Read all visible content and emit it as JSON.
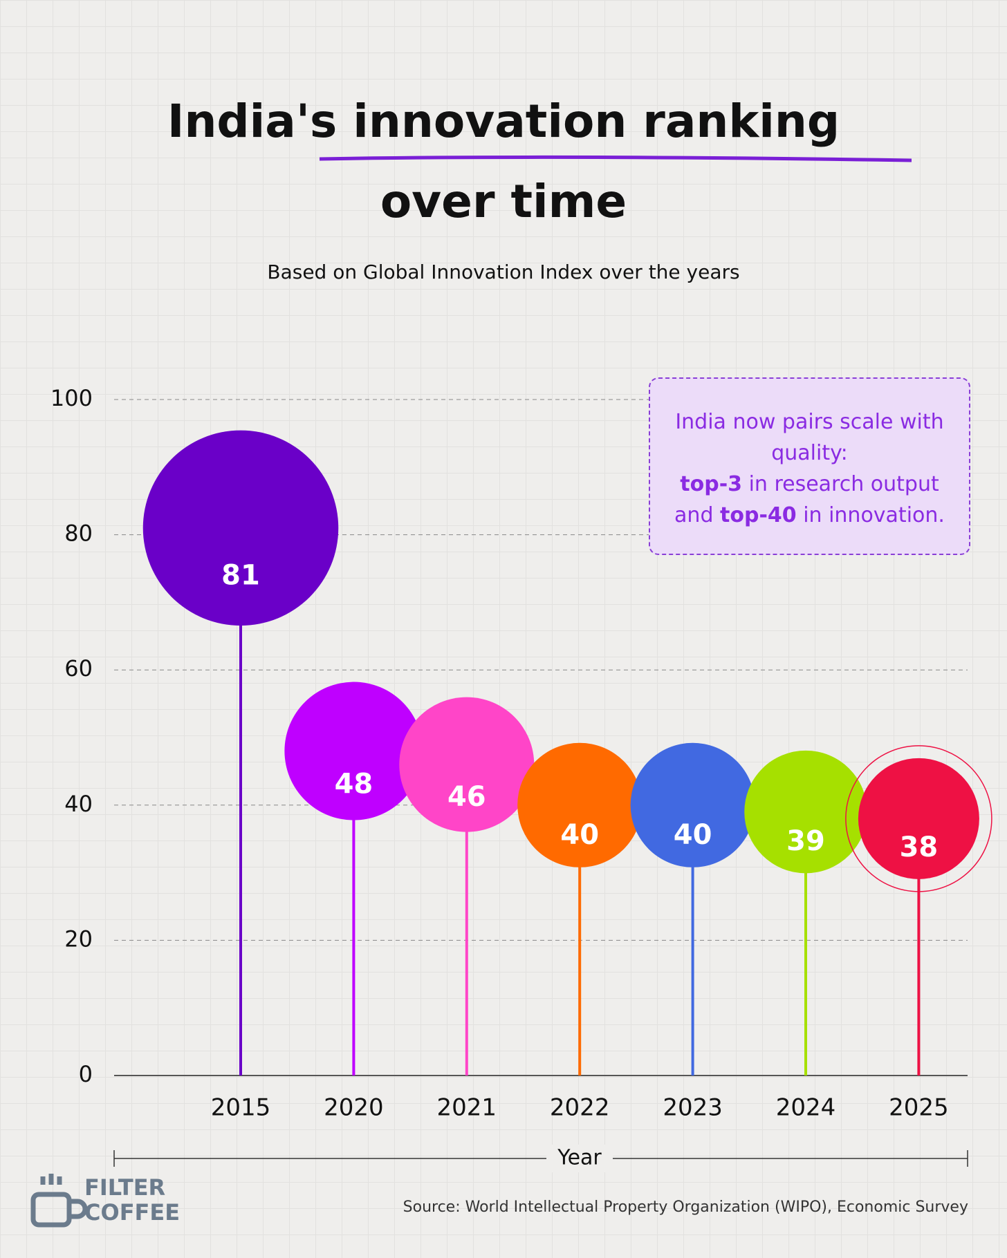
{
  "chart_data": {
    "type": "balloon",
    "title": [
      "India's innovation ranking",
      "over time"
    ],
    "subtitle": "Based on Global Innovation Index over the years",
    "categories": [
      "2015",
      "2020",
      "2021",
      "2022",
      "2023",
      "2024",
      "2025"
    ],
    "values": [
      81,
      48,
      46,
      40,
      40,
      39,
      38
    ],
    "colors": [
      "#6a00c8",
      "#bf00ff",
      "#ff45c8",
      "#ff6a00",
      "#4169e1",
      "#a6e000",
      "#ee1144"
    ],
    "ylim": [
      0,
      100
    ],
    "yticks": [
      0,
      20,
      40,
      60,
      80,
      100
    ],
    "grid": true,
    "xlabel": "Year",
    "highlight": "2025",
    "annotation": [
      {
        "text": "India now pairs scale with quality:",
        "bold": false
      },
      {
        "text": "top-3",
        "bold": true
      },
      {
        "text": " in research output and ",
        "bold": false
      },
      {
        "text": "top-40",
        "bold": true
      },
      {
        "text": " in innovation.",
        "bold": false
      }
    ],
    "source": "Source: World Intellectual Property Organization (WIPO), Economic Survey",
    "logo": [
      "FILTER",
      "COFFEE"
    ]
  }
}
